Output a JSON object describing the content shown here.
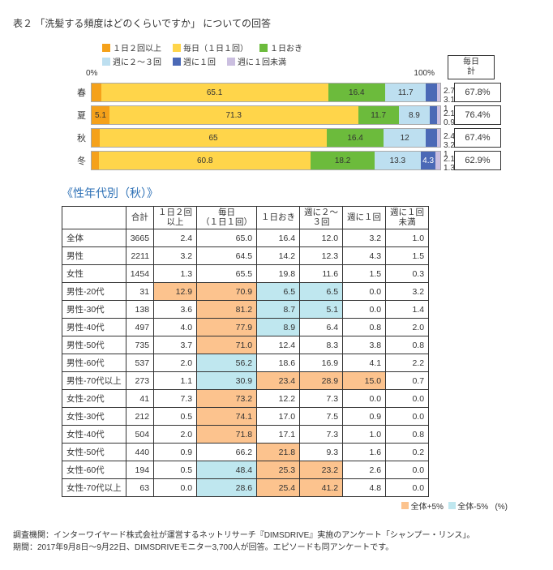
{
  "title": "表２ 「洗髪する頻度はどのくらいですか」 についての回答",
  "legend": [
    {
      "label": "１日２回以上",
      "color": "#f5a11a"
    },
    {
      "label": "毎日（１日１回）",
      "color": "#ffd54a"
    },
    {
      "label": "１日おき",
      "color": "#6cbb3c"
    },
    {
      "label": "週に２～３回",
      "color": "#bddff0"
    },
    {
      "label": "週に１回",
      "color": "#4b69b6"
    },
    {
      "label": "週に１回未満",
      "color": "#cbbfe0"
    }
  ],
  "axis": {
    "min": "0%",
    "max": "100%"
  },
  "side_header": "毎日\n計",
  "seasons": [
    {
      "name": "春",
      "vals": [
        2.7,
        65.1,
        16.4,
        11.7,
        3.1,
        1.0
      ],
      "total": "67.8%"
    },
    {
      "name": "夏",
      "vals": [
        5.1,
        71.3,
        11.7,
        8.9,
        2.1,
        0.9
      ],
      "total": "76.4%"
    },
    {
      "name": "秋",
      "vals": [
        2.4,
        65.0,
        16.4,
        12.0,
        3.2,
        1.0
      ],
      "total": "67.4%"
    },
    {
      "name": "冬",
      "vals": [
        2.1,
        60.8,
        18.2,
        13.3,
        4.3,
        1.3
      ],
      "total": "62.9%"
    }
  ],
  "subheader": "《性年代別（秋）》",
  "table": {
    "columns": [
      "",
      "合計",
      "１日２回\n以上",
      "毎日\n（１日１回）",
      "１日おき",
      "週に２～\n３回",
      "週に１回",
      "週に１回\n未満"
    ],
    "pct_label": "(%)",
    "rows": [
      {
        "h": "全体",
        "c": [
          "3665",
          "2.4",
          "65.0",
          "16.4",
          "12.0",
          "3.2",
          "1.0"
        ],
        "hl": [
          "",
          "",
          "",
          "",
          "",
          "",
          ""
        ]
      },
      {
        "h": "男性",
        "c": [
          "2211",
          "3.2",
          "64.5",
          "14.2",
          "12.3",
          "4.3",
          "1.5"
        ],
        "hl": [
          "",
          "",
          "",
          "",
          "",
          "",
          ""
        ]
      },
      {
        "h": "女性",
        "c": [
          "1454",
          "1.3",
          "65.5",
          "19.8",
          "11.6",
          "1.5",
          "0.3"
        ],
        "hl": [
          "",
          "",
          "",
          "",
          "",
          "",
          ""
        ]
      },
      {
        "h": "男性-20代",
        "c": [
          "31",
          "12.9",
          "70.9",
          "6.5",
          "6.5",
          "0.0",
          "3.2"
        ],
        "hl": [
          "",
          "hi",
          "hi",
          "lo",
          "lo",
          "",
          ""
        ]
      },
      {
        "h": "男性-30代",
        "c": [
          "138",
          "3.6",
          "81.2",
          "8.7",
          "5.1",
          "0.0",
          "1.4"
        ],
        "hl": [
          "",
          "",
          "hi",
          "lo",
          "lo",
          "",
          ""
        ]
      },
      {
        "h": "男性-40代",
        "c": [
          "497",
          "4.0",
          "77.9",
          "8.9",
          "6.4",
          "0.8",
          "2.0"
        ],
        "hl": [
          "",
          "",
          "hi",
          "lo",
          "",
          "",
          ""
        ]
      },
      {
        "h": "男性-50代",
        "c": [
          "735",
          "3.7",
          "71.0",
          "12.4",
          "8.3",
          "3.8",
          "0.8"
        ],
        "hl": [
          "",
          "",
          "hi",
          "",
          "",
          "",
          ""
        ]
      },
      {
        "h": "男性-60代",
        "c": [
          "537",
          "2.0",
          "56.2",
          "18.6",
          "16.9",
          "4.1",
          "2.2"
        ],
        "hl": [
          "",
          "",
          "lo",
          "",
          "",
          "",
          ""
        ]
      },
      {
        "h": "男性-70代以上",
        "c": [
          "273",
          "1.1",
          "30.9",
          "23.4",
          "28.9",
          "15.0",
          "0.7"
        ],
        "hl": [
          "",
          "",
          "lo",
          "hi",
          "hi",
          "hi",
          ""
        ]
      },
      {
        "h": "女性-20代",
        "c": [
          "41",
          "7.3",
          "73.2",
          "12.2",
          "7.3",
          "0.0",
          "0.0"
        ],
        "hl": [
          "",
          "",
          "hi",
          "",
          "",
          "",
          ""
        ]
      },
      {
        "h": "女性-30代",
        "c": [
          "212",
          "0.5",
          "74.1",
          "17.0",
          "7.5",
          "0.9",
          "0.0"
        ],
        "hl": [
          "",
          "",
          "hi",
          "",
          "",
          "",
          ""
        ]
      },
      {
        "h": "女性-40代",
        "c": [
          "504",
          "2.0",
          "71.8",
          "17.1",
          "7.3",
          "1.0",
          "0.8"
        ],
        "hl": [
          "",
          "",
          "hi",
          "",
          "",
          "",
          ""
        ]
      },
      {
        "h": "女性-50代",
        "c": [
          "440",
          "0.9",
          "66.2",
          "21.8",
          "9.3",
          "1.6",
          "0.2"
        ],
        "hl": [
          "",
          "",
          "",
          "hi",
          "",
          "",
          ""
        ]
      },
      {
        "h": "女性-60代",
        "c": [
          "194",
          "0.5",
          "48.4",
          "25.3",
          "23.2",
          "2.6",
          "0.0"
        ],
        "hl": [
          "",
          "",
          "lo",
          "hi",
          "hi",
          "",
          ""
        ]
      },
      {
        "h": "女性-70代以上",
        "c": [
          "63",
          "0.0",
          "28.6",
          "25.4",
          "41.2",
          "4.8",
          "0.0"
        ],
        "hl": [
          "",
          "",
          "lo",
          "hi",
          "hi",
          "",
          ""
        ]
      }
    ],
    "legend_hi": "全体+5%",
    "legend_lo": "全体-5%"
  },
  "footer1": "調査機関：インターワイヤード株式会社が運営するネットリサーチ『DIMSDRIVE』実施のアンケート「シャンプー・リンス」。",
  "footer2": "期間：2017年9月8日～9月22日、DIMSDRIVEモニター3,700人が回答。エピソードも同アンケートです。"
}
